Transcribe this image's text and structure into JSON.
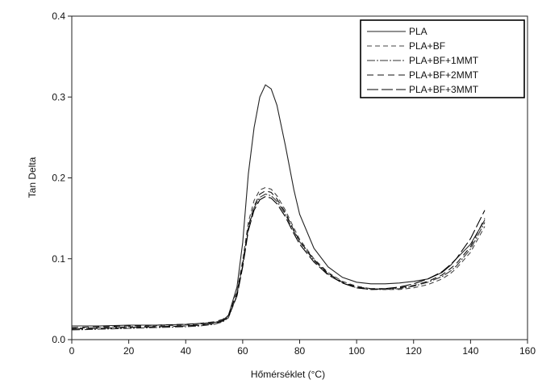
{
  "chart_data": {
    "type": "line",
    "xlabel": "Hőmérséklet (°C)",
    "ylabel": "Tan Delta",
    "xlim": [
      0,
      160
    ],
    "ylim": [
      0,
      0.4
    ],
    "xticks": [
      0,
      20,
      40,
      60,
      80,
      100,
      120,
      140,
      160
    ],
    "yticks": [
      0.0,
      0.1,
      0.2,
      0.3,
      0.4
    ],
    "ytick_labels": [
      "0.0",
      "0.1",
      "0.2",
      "0.3",
      "0.4"
    ],
    "grid": false,
    "legend_position": "top-right",
    "series": [
      {
        "name": "PLA",
        "color": "#222222",
        "dash": "",
        "x": [
          0,
          10,
          20,
          30,
          40,
          45,
          50,
          53,
          55,
          58,
          60,
          62,
          64,
          66,
          68,
          70,
          72,
          75,
          78,
          80,
          85,
          90,
          95,
          100,
          105,
          110,
          115,
          120,
          125,
          130,
          133,
          135,
          140,
          145
        ],
        "y": [
          0.017,
          0.017,
          0.018,
          0.018,
          0.019,
          0.02,
          0.021,
          0.024,
          0.03,
          0.065,
          0.12,
          0.205,
          0.262,
          0.3,
          0.315,
          0.31,
          0.29,
          0.24,
          0.185,
          0.155,
          0.113,
          0.09,
          0.077,
          0.071,
          0.069,
          0.069,
          0.07,
          0.072,
          0.075,
          0.083,
          0.092,
          0.1,
          0.118,
          0.148
        ]
      },
      {
        "name": "PLA+BF",
        "color": "#444444",
        "dash": "6 4",
        "x": [
          0,
          10,
          20,
          30,
          40,
          45,
          50,
          53,
          55,
          58,
          60,
          62,
          64,
          66,
          68,
          70,
          72,
          75,
          78,
          80,
          85,
          90,
          95,
          100,
          105,
          110,
          115,
          120,
          125,
          130,
          133,
          135,
          140,
          145
        ],
        "y": [
          0.014,
          0.015,
          0.016,
          0.017,
          0.018,
          0.019,
          0.021,
          0.024,
          0.029,
          0.06,
          0.098,
          0.145,
          0.172,
          0.185,
          0.188,
          0.186,
          0.178,
          0.16,
          0.138,
          0.124,
          0.1,
          0.083,
          0.072,
          0.066,
          0.063,
          0.062,
          0.062,
          0.064,
          0.068,
          0.075,
          0.082,
          0.088,
          0.108,
          0.14
        ]
      },
      {
        "name": "PLA+BF+1MMT",
        "color": "#333333",
        "dash": "10 2 2 2",
        "x": [
          0,
          10,
          20,
          30,
          40,
          45,
          50,
          53,
          55,
          58,
          60,
          62,
          64,
          66,
          68,
          70,
          72,
          75,
          78,
          80,
          85,
          90,
          95,
          100,
          105,
          110,
          115,
          120,
          125,
          130,
          133,
          135,
          140,
          145
        ],
        "y": [
          0.012,
          0.013,
          0.014,
          0.015,
          0.016,
          0.017,
          0.019,
          0.022,
          0.027,
          0.055,
          0.092,
          0.138,
          0.163,
          0.176,
          0.18,
          0.178,
          0.171,
          0.155,
          0.134,
          0.121,
          0.098,
          0.081,
          0.07,
          0.064,
          0.062,
          0.062,
          0.063,
          0.066,
          0.071,
          0.078,
          0.085,
          0.091,
          0.112,
          0.145
        ]
      },
      {
        "name": "PLA+BF+2MMT",
        "color": "#111111",
        "dash": "8 5",
        "x": [
          0,
          10,
          20,
          30,
          40,
          45,
          50,
          53,
          55,
          58,
          60,
          62,
          64,
          66,
          68,
          70,
          72,
          75,
          78,
          80,
          85,
          90,
          95,
          100,
          105,
          110,
          115,
          120,
          125,
          130,
          133,
          135,
          140,
          145
        ],
        "y": [
          0.015,
          0.016,
          0.017,
          0.018,
          0.019,
          0.02,
          0.022,
          0.025,
          0.03,
          0.058,
          0.094,
          0.14,
          0.165,
          0.18,
          0.184,
          0.182,
          0.174,
          0.157,
          0.135,
          0.122,
          0.099,
          0.082,
          0.071,
          0.065,
          0.063,
          0.063,
          0.064,
          0.067,
          0.072,
          0.08,
          0.088,
          0.094,
          0.115,
          0.15
        ]
      },
      {
        "name": "PLA+BF+3MMT",
        "color": "#000000",
        "dash": "14 4",
        "x": [
          0,
          10,
          20,
          30,
          40,
          45,
          50,
          53,
          55,
          58,
          60,
          62,
          64,
          66,
          68,
          70,
          72,
          75,
          78,
          80,
          85,
          90,
          95,
          100,
          105,
          110,
          115,
          120,
          125,
          130,
          133,
          135,
          140,
          145
        ],
        "y": [
          0.013,
          0.014,
          0.015,
          0.016,
          0.017,
          0.018,
          0.02,
          0.023,
          0.028,
          0.054,
          0.09,
          0.135,
          0.16,
          0.173,
          0.177,
          0.175,
          0.168,
          0.152,
          0.131,
          0.118,
          0.096,
          0.08,
          0.07,
          0.064,
          0.062,
          0.063,
          0.065,
          0.069,
          0.075,
          0.084,
          0.093,
          0.1,
          0.125,
          0.16
        ]
      }
    ]
  }
}
